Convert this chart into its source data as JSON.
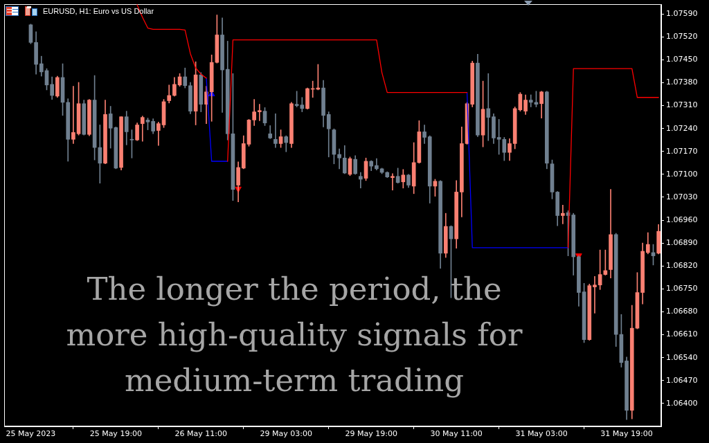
{
  "chart_data": {
    "type": "candlestick",
    "title": "EURUSD, H1: Euro vs US Dollar",
    "categories": [
      "25 May 2023",
      null,
      null,
      null,
      null,
      null,
      null,
      null,
      null,
      null,
      null,
      null,
      null,
      null,
      null,
      null,
      "25 May 19:00",
      null,
      null,
      null,
      null,
      null,
      null,
      null,
      null,
      null,
      null,
      null,
      null,
      null,
      null,
      null,
      "26 May 11:00",
      null,
      null,
      null,
      null,
      null,
      null,
      null,
      null,
      null,
      null,
      null,
      null,
      null,
      null,
      null,
      "29 May 03:00",
      null,
      null,
      null,
      null,
      null,
      null,
      null,
      null,
      null,
      null,
      null,
      null,
      null,
      null,
      null,
      "29 May 19:00",
      null,
      null,
      null,
      null,
      null,
      null,
      null,
      null,
      null,
      null,
      null,
      null,
      null,
      null,
      null,
      "30 May 11:00",
      null,
      null,
      null,
      null,
      null,
      null,
      null,
      null,
      null,
      null,
      null,
      null,
      null,
      null,
      null,
      "31 May 03:00",
      null,
      null,
      null,
      null,
      null,
      null,
      null,
      null,
      null,
      null,
      null,
      null,
      null,
      null,
      null,
      "31 May 19:00",
      null,
      null,
      null,
      null,
      null,
      null
    ],
    "ohlc": [
      [
        1.07557,
        1.07559,
        1.07499,
        1.07503
      ],
      [
        1.07503,
        1.07536,
        1.07406,
        1.07436
      ],
      [
        1.07438,
        1.07461,
        1.074,
        1.07413
      ],
      [
        1.07417,
        1.07423,
        1.07358,
        1.07373
      ],
      [
        1.07375,
        1.07398,
        1.07329,
        1.07341
      ],
      [
        1.07339,
        1.074,
        1.07335,
        1.07396
      ],
      [
        1.07396,
        1.07438,
        1.0728,
        1.0732
      ],
      [
        1.0732,
        1.07331,
        1.0714,
        1.07207
      ],
      [
        1.07207,
        1.07369,
        1.07194,
        1.07228
      ],
      [
        1.07224,
        1.07381,
        1.0722,
        1.07316
      ],
      [
        1.07316,
        1.07327,
        1.0722,
        1.07222
      ],
      [
        1.07222,
        1.07329,
        1.07218,
        1.07327
      ],
      [
        1.07327,
        1.07402,
        1.07144,
        1.07182
      ],
      [
        1.07182,
        1.07251,
        1.07073,
        1.07134
      ],
      [
        1.07134,
        1.07327,
        1.07132,
        1.07283
      ],
      [
        1.07285,
        1.07308,
        1.0718,
        1.07241
      ],
      [
        1.07243,
        1.07245,
        1.07117,
        1.07119
      ],
      [
        1.07121,
        1.07276,
        1.07113,
        1.07276
      ],
      [
        1.07276,
        1.07293,
        1.0719,
        1.0723
      ],
      [
        1.07207,
        1.07236,
        1.0715,
        1.07205
      ],
      [
        1.07205,
        1.07257,
        1.07203,
        1.07251
      ],
      [
        1.07255,
        1.07278,
        1.07201,
        1.07274
      ],
      [
        1.07266,
        1.07272,
        1.07236,
        1.0726
      ],
      [
        1.07262,
        1.0727,
        1.07224,
        1.07232
      ],
      [
        1.07234,
        1.0726,
        1.07188,
        1.07255
      ],
      [
        1.07251,
        1.07329,
        1.07243,
        1.07322
      ],
      [
        1.07325,
        1.07373,
        1.07318,
        1.07341
      ],
      [
        1.07341,
        1.07396,
        1.07339,
        1.07375
      ],
      [
        1.07373,
        1.07408,
        1.07369,
        1.07398
      ],
      [
        1.07398,
        1.07425,
        1.07364,
        1.07371
      ],
      [
        1.07371,
        1.07381,
        1.07285,
        1.07293
      ],
      [
        1.07293,
        1.07444,
        1.07251,
        1.07404
      ],
      [
        1.07404,
        1.07411,
        1.07291,
        1.07314
      ],
      [
        1.07314,
        1.07369,
        1.07255,
        1.07352
      ],
      [
        1.07352,
        1.07465,
        1.07262,
        1.07442
      ],
      [
        1.07442,
        1.07587,
        1.0744,
        1.07526
      ],
      [
        1.07526,
        1.07578,
        1.07289,
        1.07419
      ],
      [
        1.07421,
        1.07507,
        1.07205,
        1.07224
      ],
      [
        1.07224,
        1.07408,
        1.0702,
        1.07054
      ],
      [
        1.07067,
        1.07138,
        1.07016,
        1.07121
      ],
      [
        1.07119,
        1.07218,
        1.07117,
        1.07194
      ],
      [
        1.07192,
        1.07268,
        1.07186,
        1.07266
      ],
      [
        1.07266,
        1.07329,
        1.07249,
        1.07291
      ],
      [
        1.07291,
        1.07314,
        1.07264,
        1.07295
      ],
      [
        1.07293,
        1.07304,
        1.07249,
        1.07257
      ],
      [
        1.07224,
        1.07249,
        1.07209,
        1.07211
      ],
      [
        1.07207,
        1.07285,
        1.07182,
        1.07194
      ],
      [
        1.07194,
        1.07236,
        1.07182,
        1.07215
      ],
      [
        1.07215,
        1.07218,
        1.07169,
        1.07197
      ],
      [
        1.07194,
        1.0732,
        1.07182,
        1.07316
      ],
      [
        1.07314,
        1.07354,
        1.07306,
        1.0731
      ],
      [
        1.07312,
        1.07335,
        1.07291,
        1.07301
      ],
      [
        1.07301,
        1.07364,
        1.07299,
        1.07362
      ],
      [
        1.0736,
        1.07385,
        1.07335,
        1.07362
      ],
      [
        1.0736,
        1.07436,
        1.07358,
        1.07364
      ],
      [
        1.07364,
        1.07387,
        1.07245,
        1.0728
      ],
      [
        1.07283,
        1.07291,
        1.07153,
        1.07239
      ],
      [
        1.07236,
        1.07239,
        1.07132,
        1.07161
      ],
      [
        1.07161,
        1.07178,
        1.07117,
        1.0715
      ],
      [
        1.0715,
        1.07188,
        1.07102,
        1.07104
      ],
      [
        1.071,
        1.07153,
        1.07096,
        1.07148
      ],
      [
        1.07146,
        1.07157,
        1.071,
        1.07102
      ],
      [
        1.07094,
        1.07106,
        1.07058,
        1.07085
      ],
      [
        1.07088,
        1.0715,
        1.07081,
        1.0714
      ],
      [
        1.0714,
        1.07142,
        1.07111,
        1.07125
      ],
      [
        1.07127,
        1.07148,
        1.07113,
        1.07117
      ],
      [
        1.07117,
        1.07119,
        1.07102,
        1.07106
      ],
      [
        1.07106,
        1.07108,
        1.0709,
        1.07092
      ],
      [
        1.0709,
        1.07102,
        1.07052,
        1.07094
      ],
      [
        1.07094,
        1.07119,
        1.07073,
        1.07075
      ],
      [
        1.07077,
        1.07115,
        1.07058,
        1.07098
      ],
      [
        1.07098,
        1.071,
        1.0706,
        1.07067
      ],
      [
        1.07064,
        1.07197,
        1.07041,
        1.07136
      ],
      [
        1.07136,
        1.07264,
        1.07134,
        1.0723
      ],
      [
        1.0723,
        1.07251,
        1.07194,
        1.07213
      ],
      [
        1.07215,
        1.07218,
        1.07012,
        1.07064
      ],
      [
        1.07064,
        1.07085,
        1.07033,
        1.07079
      ],
      [
        1.07079,
        1.07081,
        1.06813,
        1.06859
      ],
      [
        1.06859,
        1.06981,
        1.06846,
        1.06941
      ],
      [
        1.06941,
        1.06943,
        1.06723,
        1.06903
      ],
      [
        1.06903,
        1.07081,
        1.06874,
        1.07046
      ],
      [
        1.07046,
        1.07245,
        1.0697,
        1.07194
      ],
      [
        1.07194,
        1.0732,
        1.07192,
        1.07316
      ],
      [
        1.07314,
        1.07446,
        1.07306,
        1.0744
      ],
      [
        1.0744,
        1.07467,
        1.07215,
        1.0722
      ],
      [
        1.0722,
        1.07385,
        1.07184,
        1.07299
      ],
      [
        1.07301,
        1.07408,
        1.07203,
        1.07274
      ],
      [
        1.07276,
        1.07285,
        1.07194,
        1.07211
      ],
      [
        1.07213,
        1.07268,
        1.07161,
        1.07207
      ],
      [
        1.07207,
        1.07213,
        1.07142,
        1.07167
      ],
      [
        1.07167,
        1.07209,
        1.07142,
        1.07194
      ],
      [
        1.07194,
        1.07306,
        1.07178,
        1.07301
      ],
      [
        1.07297,
        1.0735,
        1.07293,
        1.07345
      ],
      [
        1.07293,
        1.07343,
        1.07283,
        1.07327
      ],
      [
        1.07327,
        1.07343,
        1.07306,
        1.0732
      ],
      [
        1.0732,
        1.07354,
        1.07306,
        1.07314
      ],
      [
        1.07316,
        1.07354,
        1.07272,
        1.07352
      ],
      [
        1.07352,
        1.07354,
        1.07117,
        1.07134
      ],
      [
        1.07132,
        1.07144,
        1.07025,
        1.07046
      ],
      [
        1.07046,
        1.07048,
        1.06943,
        1.06974
      ],
      [
        1.06974,
        1.07006,
        1.06949,
        1.06981
      ],
      [
        1.06983,
        1.06989,
        1.06851,
        1.06974
      ],
      [
        1.06976,
        1.06981,
        1.06792,
        1.06848
      ],
      [
        1.06848,
        1.06851,
        1.06697,
        1.06739
      ],
      [
        1.06741,
        1.06767,
        1.06586,
        1.06595
      ],
      [
        1.06595,
        1.06765,
        1.06593,
        1.0676
      ],
      [
        1.06756,
        1.06788,
        1.06676,
        1.06762
      ],
      [
        1.06762,
        1.06869,
        1.06748,
        1.06794
      ],
      [
        1.06794,
        1.06869,
        1.06792,
        1.06806
      ],
      [
        1.06809,
        1.07054,
        1.06783,
        1.06916
      ],
      [
        1.06916,
        1.0692,
        1.06574,
        1.06611
      ],
      [
        1.06611,
        1.06672,
        1.06511,
        1.06525
      ],
      [
        1.0653,
        1.06542,
        1.06351,
        1.06379
      ],
      [
        1.06379,
        1.067,
        1.06353,
        1.0663
      ],
      [
        1.0663,
        1.068,
        1.06628,
        1.06739
      ],
      [
        1.06739,
        1.0689,
        1.06704,
        1.06865
      ],
      [
        1.06861,
        1.06922,
        1.06857,
        1.06886
      ],
      [
        1.06861,
        1.06886,
        1.06823,
        1.06851
      ],
      [
        1.06859,
        1.06947,
        1.06857,
        1.06926
      ]
    ],
    "colors": [
      "#708090",
      "#708090",
      "#708090",
      "#708090",
      "#708090",
      "#fa8072",
      "#708090",
      "#708090",
      "#fa8072",
      "#fa8072",
      "#708090",
      "#fa8072",
      "#708090",
      "#708090",
      "#fa8072",
      "#708090",
      "#708090",
      "#fa8072",
      "#708090",
      "#708090",
      "#fa8072",
      "#fa8072",
      "#708090",
      "#708090",
      "#fa8072",
      "#fa8072",
      "#fa8072",
      "#fa8072",
      "#fa8072",
      "#708090",
      "#708090",
      "#fa8072",
      "#708090",
      "#fa8072",
      "#fa8072",
      "#fa8072",
      "#708090",
      "#708090",
      "#708090",
      "#fa8072",
      "#fa8072",
      "#fa8072",
      "#fa8072",
      "#fa8072",
      "#708090",
      "#708090",
      "#708090",
      "#fa8072",
      "#708090",
      "#fa8072",
      "#708090",
      "#708090",
      "#fa8072",
      "#fa8072",
      "#fa8072",
      "#708090",
      "#708090",
      "#708090",
      "#708090",
      "#708090",
      "#fa8072",
      "#708090",
      "#708090",
      "#fa8072",
      "#708090",
      "#708090",
      "#708090",
      "#708090",
      "#fa8072",
      "#708090",
      "#fa8072",
      "#708090",
      "#fa8072",
      "#fa8072",
      "#708090",
      "#708090",
      "#fa8072",
      "#708090",
      "#fa8072",
      "#708090",
      "#fa8072",
      "#fa8072",
      "#fa8072",
      "#fa8072",
      "#708090",
      "#fa8072",
      "#708090",
      "#708090",
      "#708090",
      "#708090",
      "#fa8072",
      "#fa8072",
      "#fa8072",
      "#fa8072",
      "#708090",
      "#708090",
      "#fa8072",
      "#708090",
      "#708090",
      "#708090",
      "#fa8072",
      "#708090",
      "#708090",
      "#708090",
      "#708090",
      "#fa8072",
      "#fa8072",
      "#fa8072",
      "#fa8072",
      "#fa8072",
      "#708090",
      "#708090",
      "#708090",
      "#fa8072",
      "#fa8072",
      "#fa8072",
      "#fa8072",
      "#708090",
      "#fa8072"
    ],
    "series": [
      {
        "type": "line",
        "color": "#ff0000",
        "values": [
          null,
          null,
          null,
          null,
          null,
          null,
          null,
          null,
          null,
          null,
          null,
          null,
          null,
          null,
          null,
          null,
          null,
          null,
          null,
          null,
          1.07618,
          1.0758,
          1.07547,
          1.07543,
          1.07543,
          1.07543,
          1.07543,
          1.07543,
          1.07543,
          1.07541,
          1.07469,
          1.07425,
          1.07406,
          1.07394,
          null,
          null,
          null,
          1.0714,
          1.07511,
          1.07511,
          1.07511,
          1.07511,
          1.07511,
          1.07511,
          1.07511,
          1.07511,
          1.07511,
          1.07511,
          1.07511,
          1.07511,
          1.07511,
          1.07511,
          1.07511,
          1.07511,
          1.07511,
          1.07511,
          1.07511,
          1.07511,
          1.07511,
          1.07511,
          1.07511,
          1.07511,
          1.07511,
          1.07511,
          1.07511,
          1.07511,
          1.07411,
          1.0735,
          1.0735,
          1.0735,
          1.0735,
          1.0735,
          1.0735,
          1.0735,
          1.0735,
          1.0735,
          1.0735,
          1.0735,
          1.0735,
          1.0735,
          1.0735,
          1.0735,
          1.0735,
          null,
          null,
          null,
          null,
          null,
          null,
          null,
          null,
          null,
          null,
          null,
          null,
          null,
          null,
          null,
          null,
          null,
          null,
          1.06876,
          1.07423,
          1.07423,
          1.07423,
          1.07423,
          1.07423,
          1.07423,
          1.07423,
          1.07423,
          1.07423,
          1.07423,
          1.07423,
          1.07423,
          1.07335,
          1.07335,
          1.07335,
          1.07335,
          1.07335
        ]
      },
      {
        "type": "line",
        "color": "#0000ff",
        "values": [
          null,
          null,
          null,
          null,
          null,
          null,
          null,
          null,
          null,
          null,
          null,
          null,
          null,
          null,
          null,
          null,
          null,
          null,
          null,
          null,
          null,
          null,
          null,
          null,
          null,
          null,
          null,
          null,
          null,
          null,
          null,
          null,
          null,
          1.07394,
          1.0714,
          1.0714,
          1.0714,
          1.0714,
          null,
          null,
          null,
          null,
          null,
          null,
          null,
          null,
          null,
          null,
          null,
          null,
          null,
          null,
          null,
          null,
          null,
          null,
          null,
          null,
          null,
          null,
          null,
          null,
          null,
          null,
          null,
          null,
          null,
          null,
          null,
          null,
          null,
          null,
          null,
          null,
          null,
          null,
          null,
          null,
          null,
          null,
          null,
          null,
          1.0735,
          1.06876,
          1.06876,
          1.06876,
          1.06876,
          1.06876,
          1.06876,
          1.06876,
          1.06876,
          1.06876,
          1.06876,
          1.06876,
          1.06876,
          1.06876,
          1.06876,
          1.06876,
          1.06876,
          1.06876,
          1.06876,
          1.06876,
          null,
          null,
          null,
          null,
          null,
          null,
          null,
          null,
          null,
          null,
          null,
          null,
          null,
          null,
          null,
          null,
          null
        ]
      },
      {
        "type": "scatter",
        "color": "#0000ff",
        "marker": "triangle",
        "values": [
          null,
          null,
          null,
          null,
          null,
          null,
          null,
          null,
          null,
          null,
          null,
          null,
          null,
          null,
          null,
          null,
          null,
          null,
          null,
          null,
          null,
          null,
          null,
          null,
          null,
          null,
          null,
          null,
          null,
          null,
          null,
          null,
          null,
          null,
          1.07345,
          null,
          null,
          null,
          null,
          null,
          null,
          null,
          null,
          null,
          null,
          null,
          null,
          null,
          null,
          null,
          null,
          null,
          null,
          null,
          null,
          null,
          null,
          null,
          null,
          null,
          null,
          null,
          null,
          null,
          null,
          null,
          null,
          null,
          null,
          null,
          null,
          null,
          null,
          null,
          null,
          null,
          null,
          null,
          null,
          null,
          null,
          null,
          null,
          null,
          null,
          null,
          null,
          null,
          null,
          null,
          null,
          null,
          null,
          null,
          null,
          null,
          null,
          null,
          null,
          null,
          null,
          null,
          null,
          null,
          null,
          null,
          null,
          null,
          null,
          null,
          null,
          null,
          null,
          null,
          null,
          null,
          null,
          null,
          null
        ]
      },
      {
        "type": "scatter",
        "color": "#ff0000",
        "marker": "triangle",
        "values": [
          null,
          null,
          null,
          null,
          null,
          null,
          null,
          null,
          null,
          null,
          null,
          null,
          null,
          null,
          null,
          null,
          null,
          null,
          null,
          null,
          null,
          null,
          null,
          null,
          null,
          null,
          null,
          null,
          null,
          null,
          null,
          null,
          null,
          null,
          null,
          null,
          null,
          null,
          null,
          1.07056,
          null,
          null,
          null,
          null,
          null,
          null,
          null,
          null,
          null,
          null,
          null,
          null,
          null,
          null,
          null,
          null,
          null,
          null,
          null,
          null,
          null,
          null,
          null,
          null,
          null,
          null,
          null,
          null,
          null,
          null,
          null,
          null,
          null,
          null,
          null,
          null,
          null,
          null,
          null,
          null,
          null,
          null,
          null,
          null,
          null,
          null,
          null,
          null,
          null,
          null,
          null,
          null,
          null,
          null,
          null,
          null,
          null,
          null,
          null,
          null,
          null,
          null,
          null,
          1.06852,
          null,
          null,
          null,
          null,
          null,
          null,
          null,
          null,
          null,
          null,
          null,
          null,
          null,
          null,
          null
        ]
      }
    ],
    "ylim": [
      1.0633,
      1.0762
    ],
    "yticks": [
      {
        "value": 1.064,
        "label": "1.06400"
      },
      {
        "value": 1.0647,
        "label": "1.06470"
      },
      {
        "value": 1.0654,
        "label": "1.06540"
      },
      {
        "value": 1.0661,
        "label": "1.06610"
      },
      {
        "value": 1.0668,
        "label": "1.06680"
      },
      {
        "value": 1.0675,
        "label": "1.06750"
      },
      {
        "value": 1.0682,
        "label": "1.06820"
      },
      {
        "value": 1.0689,
        "label": "1.06890"
      },
      {
        "value": 1.0696,
        "label": "1.06960"
      },
      {
        "value": 1.0703,
        "label": "1.07030"
      },
      {
        "value": 1.071,
        "label": "1.07100"
      },
      {
        "value": 1.0717,
        "label": "1.07170"
      },
      {
        "value": 1.0724,
        "label": "1.07240"
      },
      {
        "value": 1.0731,
        "label": "1.07310"
      },
      {
        "value": 1.0738,
        "label": "1.07380"
      },
      {
        "value": 1.0745,
        "label": "1.07450"
      },
      {
        "value": 1.0752,
        "label": "1.07520"
      },
      {
        "value": 1.0759,
        "label": "1.07590"
      }
    ],
    "annotations": [
      "The longer the period, the more high-quality signals for medium-term trading"
    ]
  }
}
